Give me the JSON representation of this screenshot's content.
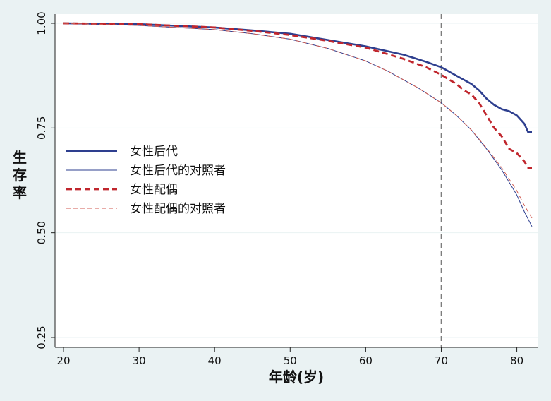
{
  "chart_data": {
    "type": "line",
    "xlabel": "年龄(岁)",
    "ylabel": "生存率",
    "xlim": [
      20,
      82
    ],
    "ylim": [
      0.25,
      1.0
    ],
    "x_ticks": [
      20,
      30,
      40,
      50,
      60,
      70,
      80
    ],
    "y_ticks": [
      0.25,
      0.5,
      0.75,
      1.0
    ],
    "y_tick_labels": [
      "0.25",
      "0.50",
      "0.75",
      "1.00"
    ],
    "reference_line_x": 70,
    "grid": true,
    "legend_position": "center-left",
    "series": [
      {
        "name": "女性后代",
        "color": "#2e3f8f",
        "style": "solid-thick",
        "points": [
          [
            20,
            1.0
          ],
          [
            30,
            0.998
          ],
          [
            40,
            0.99
          ],
          [
            45,
            0.983
          ],
          [
            50,
            0.975
          ],
          [
            55,
            0.96
          ],
          [
            60,
            0.945
          ],
          [
            65,
            0.925
          ],
          [
            68,
            0.908
          ],
          [
            70,
            0.895
          ],
          [
            72,
            0.875
          ],
          [
            74,
            0.855
          ],
          [
            75,
            0.84
          ],
          [
            76,
            0.82
          ],
          [
            77,
            0.805
          ],
          [
            78,
            0.795
          ],
          [
            79,
            0.79
          ],
          [
            80,
            0.78
          ],
          [
            81,
            0.76
          ],
          [
            81.5,
            0.74
          ],
          [
            82,
            0.74
          ]
        ]
      },
      {
        "name": "女性后代的对照者",
        "color": "#2e3f8f",
        "style": "solid-thin",
        "points": [
          [
            20,
            1.0
          ],
          [
            30,
            0.995
          ],
          [
            40,
            0.985
          ],
          [
            45,
            0.975
          ],
          [
            50,
            0.962
          ],
          [
            55,
            0.94
          ],
          [
            60,
            0.91
          ],
          [
            63,
            0.885
          ],
          [
            65,
            0.865
          ],
          [
            67,
            0.845
          ],
          [
            70,
            0.81
          ],
          [
            72,
            0.78
          ],
          [
            74,
            0.745
          ],
          [
            76,
            0.7
          ],
          [
            78,
            0.65
          ],
          [
            80,
            0.59
          ],
          [
            81,
            0.55
          ],
          [
            82,
            0.515
          ]
        ]
      },
      {
        "name": "女性配偶",
        "color": "#c0262d",
        "style": "dashed-thick",
        "points": [
          [
            20,
            1.0
          ],
          [
            30,
            0.998
          ],
          [
            40,
            0.99
          ],
          [
            45,
            0.982
          ],
          [
            50,
            0.972
          ],
          [
            55,
            0.958
          ],
          [
            60,
            0.942
          ],
          [
            65,
            0.915
          ],
          [
            68,
            0.895
          ],
          [
            70,
            0.877
          ],
          [
            72,
            0.855
          ],
          [
            73,
            0.84
          ],
          [
            74,
            0.83
          ],
          [
            75,
            0.81
          ],
          [
            76,
            0.78
          ],
          [
            77,
            0.75
          ],
          [
            78,
            0.73
          ],
          [
            79,
            0.7
          ],
          [
            80,
            0.69
          ],
          [
            81,
            0.67
          ],
          [
            81.5,
            0.655
          ],
          [
            82,
            0.655
          ]
        ]
      },
      {
        "name": "女性配偶的对照者",
        "color": "#d05a50",
        "style": "dashed-thin",
        "points": [
          [
            20,
            1.0
          ],
          [
            30,
            0.995
          ],
          [
            40,
            0.985
          ],
          [
            45,
            0.975
          ],
          [
            50,
            0.962
          ],
          [
            55,
            0.94
          ],
          [
            60,
            0.91
          ],
          [
            63,
            0.885
          ],
          [
            65,
            0.865
          ],
          [
            67,
            0.845
          ],
          [
            70,
            0.81
          ],
          [
            72,
            0.78
          ],
          [
            74,
            0.745
          ],
          [
            76,
            0.702
          ],
          [
            78,
            0.655
          ],
          [
            80,
            0.6
          ],
          [
            81,
            0.565
          ],
          [
            82,
            0.535
          ]
        ]
      }
    ]
  }
}
